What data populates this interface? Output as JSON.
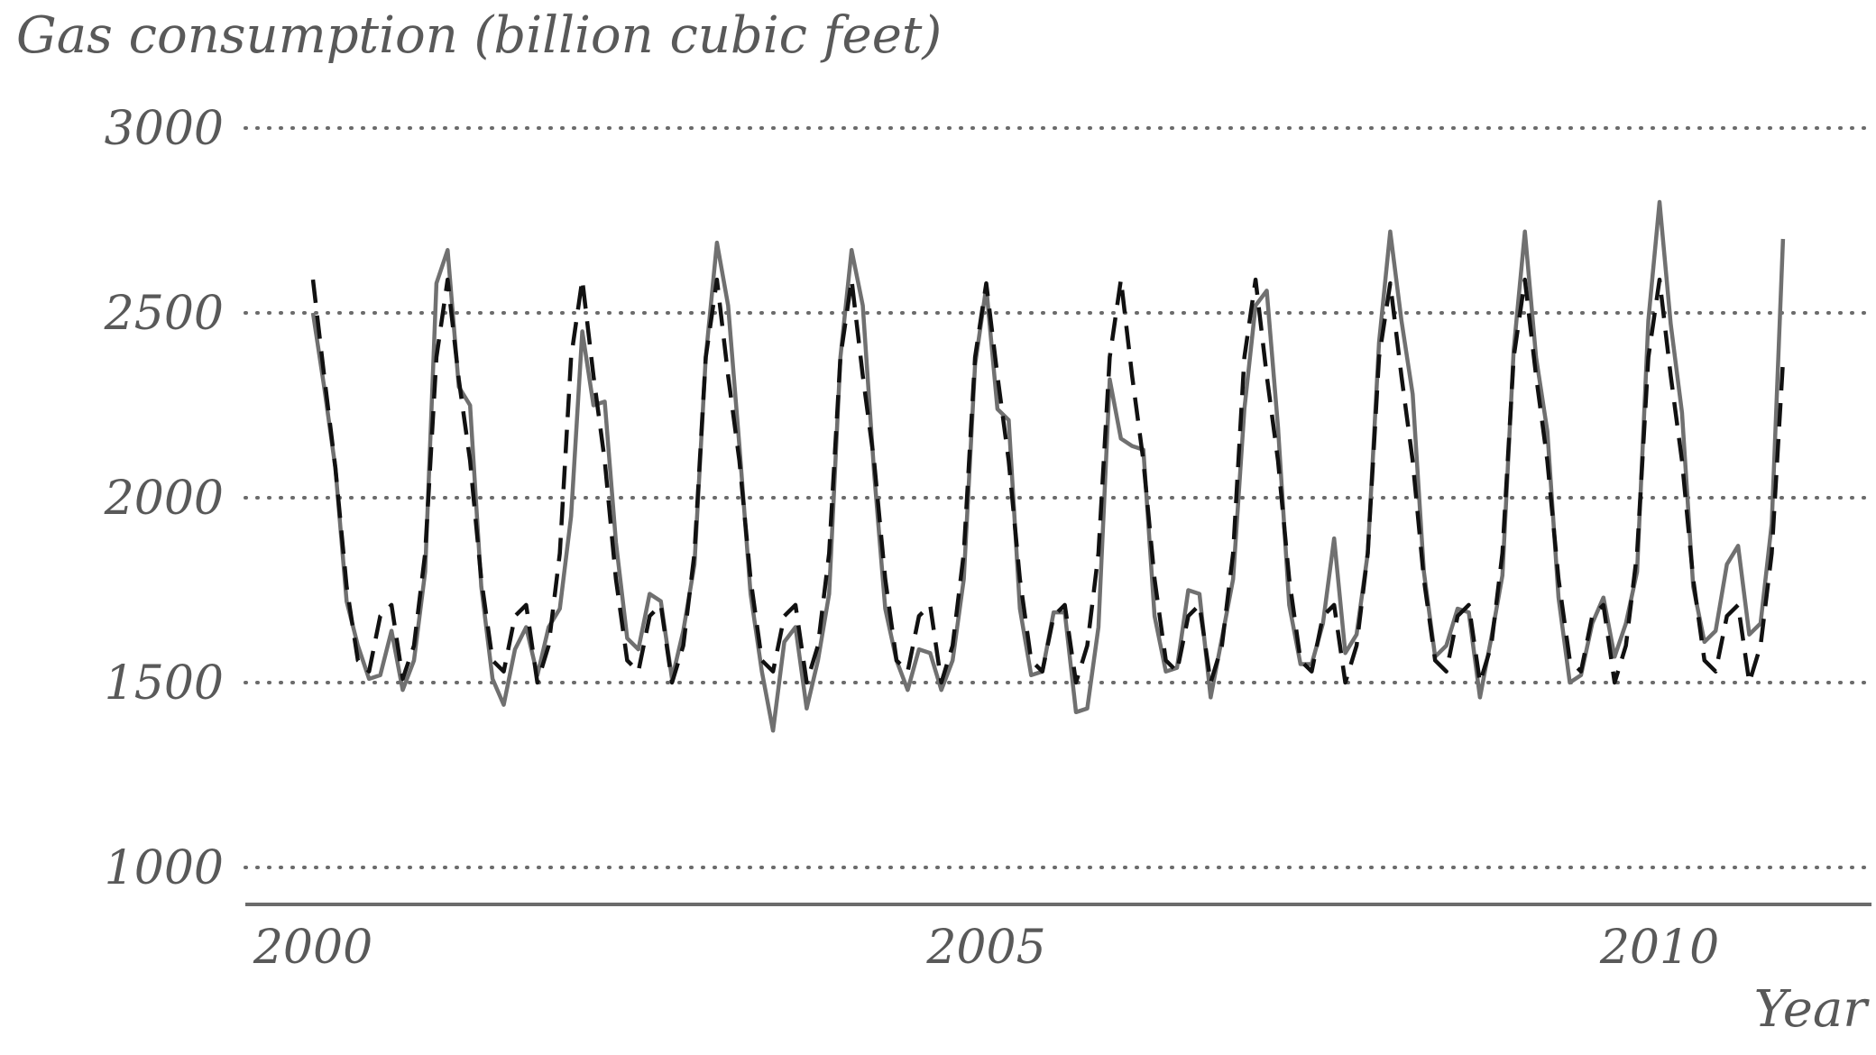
{
  "chart_data": {
    "type": "line",
    "title": "",
    "ylabel": "Gas consumption (billion cubic feet)",
    "xlabel": "Year",
    "ylim": [
      1000,
      3000
    ],
    "xlim": [
      2000,
      2011.25
    ],
    "yticks": [
      1000,
      1500,
      2000,
      2500,
      3000
    ],
    "xticks": [
      2000,
      2005,
      2010
    ],
    "grid": "horizontal dotted",
    "legend": "none",
    "start_year": 2000,
    "months_per_year": 12,
    "series": [
      {
        "style": "solid-gray",
        "color": "#707070",
        "values": [
          2500,
          2300,
          2080,
          1720,
          1600,
          1510,
          1520,
          1640,
          1480,
          1560,
          1800,
          2580,
          2670,
          2300,
          2250,
          1760,
          1510,
          1440,
          1590,
          1650,
          1520,
          1650,
          1700,
          1950,
          2450,
          2250,
          2260,
          1880,
          1620,
          1590,
          1740,
          1720,
          1510,
          1640,
          1820,
          2380,
          2690,
          2520,
          2140,
          1740,
          1530,
          1370,
          1610,
          1650,
          1430,
          1560,
          1740,
          2380,
          2670,
          2520,
          2070,
          1700,
          1560,
          1480,
          1590,
          1580,
          1480,
          1560,
          1780,
          2360,
          2570,
          2240,
          2210,
          1700,
          1520,
          1530,
          1690,
          1690,
          1420,
          1430,
          1650,
          2320,
          2160,
          2140,
          2130,
          1680,
          1530,
          1540,
          1750,
          1740,
          1460,
          1620,
          1780,
          2240,
          2520,
          2560,
          2190,
          1710,
          1550,
          1550,
          1660,
          1890,
          1580,
          1630,
          1850,
          2420,
          2720,
          2480,
          2280,
          1800,
          1570,
          1600,
          1700,
          1690,
          1460,
          1620,
          1790,
          2400,
          2720,
          2380,
          2180,
          1730,
          1500,
          1520,
          1660,
          1730,
          1570,
          1660,
          1800,
          2480,
          2800,
          2470,
          2230,
          1760,
          1610,
          1640,
          1820,
          1870,
          1630,
          1660,
          1930,
          2700
        ]
      },
      {
        "style": "dashed-black",
        "color": "#111111",
        "values": [
          2590,
          2330,
          2080,
          1760,
          1560,
          1530,
          1680,
          1710,
          1510,
          1600,
          1850,
          2380,
          2590,
          2320,
          2100,
          1780,
          1560,
          1530,
          1680,
          1710,
          1500,
          1600,
          1850,
          2380,
          2590,
          2330,
          2100,
          1780,
          1560,
          1530,
          1680,
          1710,
          1500,
          1600,
          1850,
          2380,
          2590,
          2330,
          2100,
          1780,
          1560,
          1530,
          1680,
          1710,
          1500,
          1600,
          1850,
          2380,
          2590,
          2330,
          2100,
          1780,
          1560,
          1530,
          1680,
          1710,
          1500,
          1600,
          1850,
          2380,
          2580,
          2330,
          2100,
          1780,
          1560,
          1530,
          1680,
          1710,
          1500,
          1600,
          1850,
          2380,
          2590,
          2330,
          2100,
          1780,
          1560,
          1530,
          1680,
          1710,
          1500,
          1600,
          1850,
          2380,
          2590,
          2330,
          2100,
          1780,
          1560,
          1530,
          1680,
          1710,
          1500,
          1600,
          1850,
          2380,
          2580,
          2330,
          2100,
          1780,
          1560,
          1530,
          1680,
          1710,
          1500,
          1600,
          1850,
          2380,
          2590,
          2330,
          2100,
          1780,
          1560,
          1530,
          1680,
          1710,
          1500,
          1600,
          1850,
          2380,
          2590,
          2330,
          2100,
          1780,
          1560,
          1530,
          1680,
          1710,
          1500,
          1600,
          1850,
          2370
        ]
      }
    ]
  }
}
